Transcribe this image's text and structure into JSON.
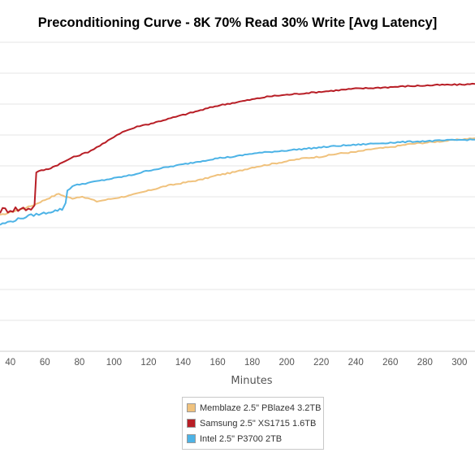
{
  "chart_data": {
    "type": "line",
    "title": "Preconditioning Curve - 8K 70% Read 30% Write [Avg Latency]",
    "xlabel": "Minutes",
    "ylabel": "",
    "x_ticks": [
      40,
      60,
      80,
      100,
      120,
      140,
      160,
      180,
      200,
      220,
      240,
      260,
      280,
      300
    ],
    "xlim": [
      34,
      309
    ],
    "ylim": [
      0,
      10
    ],
    "y_ticks": [
      1,
      2,
      3,
      4,
      5,
      6,
      7,
      8,
      9,
      10
    ],
    "y_tick_labels_visible": false,
    "grid": "horizontal",
    "legend_position": "bottom-center",
    "series": [
      {
        "name": "Memblaze 2.5\" PBlaze4 3.2TB",
        "color": "#f0c27d",
        "x": [
          34,
          40,
          46,
          52,
          56,
          60,
          64,
          68,
          72,
          76,
          80,
          85,
          90,
          95,
          100,
          110,
          120,
          130,
          140,
          150,
          160,
          170,
          180,
          190,
          200,
          210,
          220,
          230,
          240,
          250,
          260,
          270,
          280,
          290,
          300,
          309
        ],
        "y": [
          4.4,
          4.5,
          4.6,
          4.7,
          4.8,
          4.9,
          5.0,
          5.1,
          5.0,
          4.95,
          5.0,
          4.95,
          4.85,
          4.9,
          4.95,
          5.05,
          5.2,
          5.35,
          5.45,
          5.55,
          5.7,
          5.8,
          5.95,
          6.05,
          6.15,
          6.25,
          6.3,
          6.4,
          6.45,
          6.55,
          6.6,
          6.7,
          6.75,
          6.8,
          6.85,
          6.9
        ]
      },
      {
        "name": "Samsung 2.5\" XS1715 1.6TB",
        "color": "#b81e26",
        "x": [
          34,
          40,
          46,
          52,
          54,
          55,
          58,
          62,
          66,
          70,
          75,
          80,
          85,
          90,
          95,
          100,
          105,
          110,
          115,
          120,
          130,
          140,
          150,
          160,
          170,
          180,
          190,
          200,
          210,
          220,
          230,
          240,
          250,
          260,
          270,
          280,
          290,
          300,
          309
        ],
        "y": [
          4.55,
          4.6,
          4.6,
          4.65,
          4.7,
          5.8,
          5.85,
          5.9,
          6.0,
          6.1,
          6.25,
          6.35,
          6.45,
          6.6,
          6.75,
          6.95,
          7.1,
          7.2,
          7.3,
          7.35,
          7.5,
          7.65,
          7.8,
          7.95,
          8.05,
          8.15,
          8.25,
          8.3,
          8.35,
          8.4,
          8.45,
          8.5,
          8.52,
          8.55,
          8.58,
          8.6,
          8.62,
          8.63,
          8.65
        ]
      },
      {
        "name": "Intel 2.5\" P3700 2TB",
        "color": "#4db3e6",
        "x": [
          34,
          40,
          46,
          52,
          58,
          62,
          66,
          70,
          72,
          73,
          76,
          80,
          85,
          90,
          100,
          110,
          120,
          130,
          140,
          150,
          160,
          170,
          180,
          190,
          200,
          210,
          220,
          230,
          240,
          250,
          260,
          270,
          280,
          290,
          300,
          309
        ],
        "y": [
          4.1,
          4.2,
          4.3,
          4.4,
          4.45,
          4.5,
          4.55,
          4.6,
          4.8,
          5.2,
          5.35,
          5.4,
          5.45,
          5.5,
          5.6,
          5.7,
          5.85,
          5.95,
          6.05,
          6.15,
          6.25,
          6.3,
          6.4,
          6.45,
          6.5,
          6.55,
          6.6,
          6.65,
          6.68,
          6.72,
          6.75,
          6.78,
          6.8,
          6.82,
          6.84,
          6.85
        ]
      }
    ]
  }
}
